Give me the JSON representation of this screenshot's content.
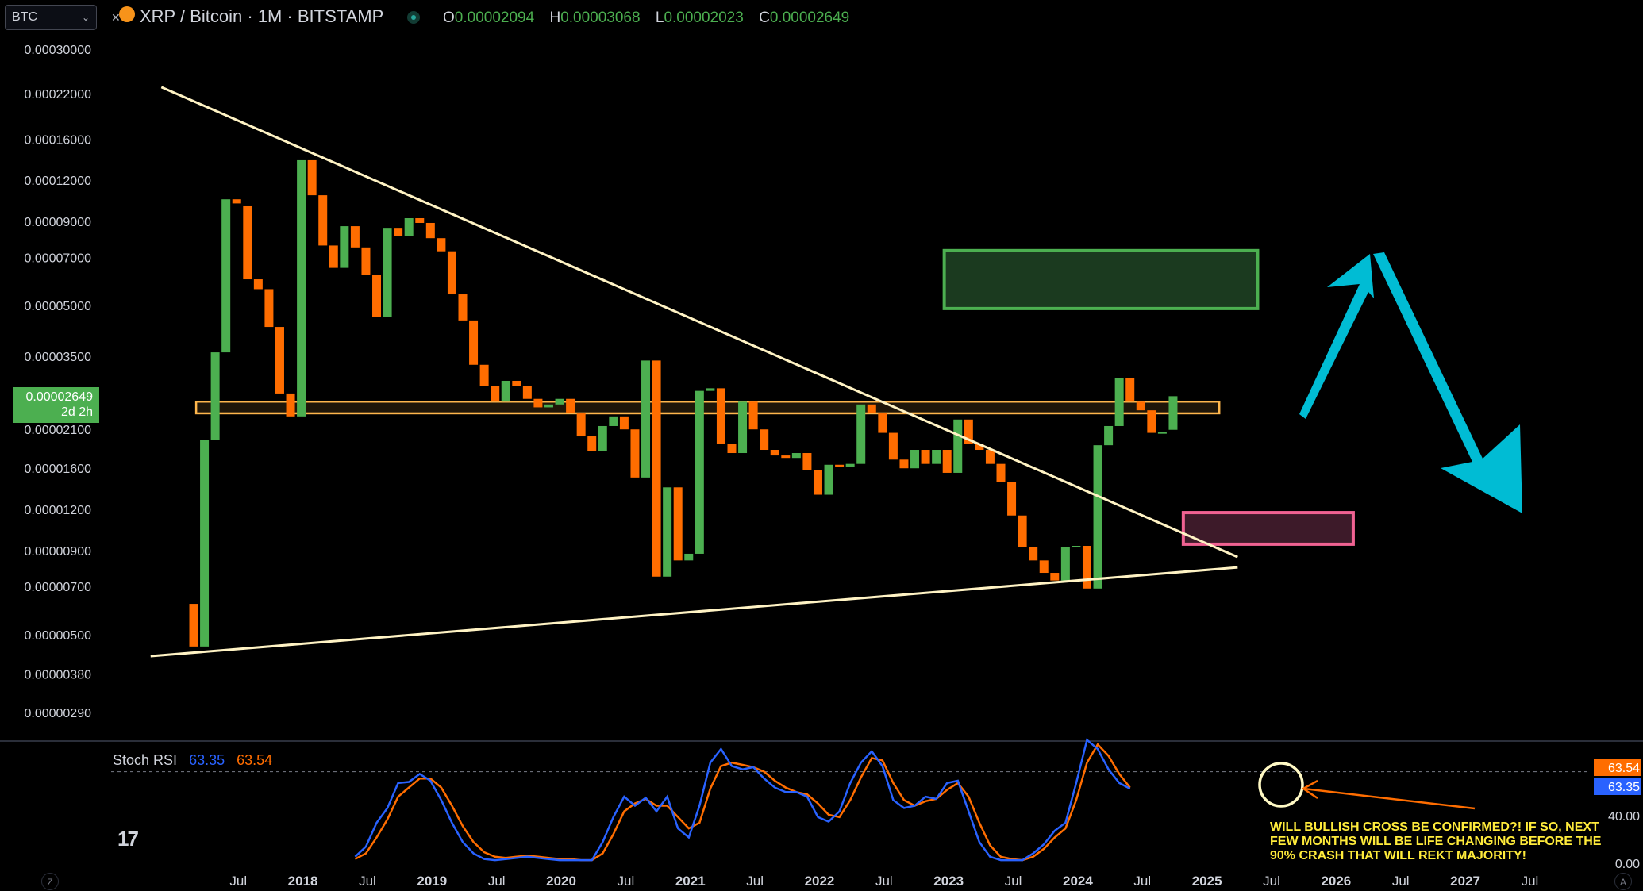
{
  "header": {
    "symbol_search": "BTC",
    "title": "XRP / Bitcoin · 1M · BITSTAMP",
    "ohlc": [
      {
        "key": "O",
        "value": "0.00002094"
      },
      {
        "key": "H",
        "value": "0.00003068"
      },
      {
        "key": "L",
        "value": "0.00002023"
      },
      {
        "key": "C",
        "value": "0.00002649"
      }
    ],
    "icons": {
      "close": "close-icon",
      "logo": "bitcoin-logo-icon",
      "status": "market-status-icon",
      "chevron": "chevron-down-icon"
    }
  },
  "price_tag": {
    "price": "0.00002649",
    "countdown": "2d 2h"
  },
  "stoch": {
    "name": "Stoch RSI",
    "k_value": "63.35",
    "d_value": "63.54"
  },
  "annotation": "WILL BULLISH CROSS BE CONFIRMED?! IF SO, NEXT FEW MONTHS WILL BE LIFE CHANGING BEFORE THE 90% CRASH THAT WILL REKT MAJORITY!",
  "toolbar": {
    "zoom_label": "Z",
    "auto_label": "A",
    "logo_label": "17"
  },
  "chart_data": {
    "type": "candlestick",
    "scale": "log",
    "y_tick_labels": [
      "0.00030000",
      "0.00022000",
      "0.00016000",
      "0.00012000",
      "0.00009000",
      "0.00007000",
      "0.00005000",
      "0.00003500",
      "0.00002100",
      "0.00001600",
      "0.00001200",
      "0.00000900",
      "0.00000700",
      "0.00000500",
      "0.00000380",
      "0.00000290"
    ],
    "x_tick_labels": [
      "Jul",
      "2018",
      "Jul",
      "2019",
      "Jul",
      "2020",
      "Jul",
      "2021",
      "Jul",
      "2022",
      "Jul",
      "2023",
      "Jul",
      "2024",
      "Jul",
      "2025",
      "Jul",
      "2026",
      "Jul",
      "2027",
      "Jul"
    ],
    "x_tick_bold": [
      false,
      true,
      false,
      true,
      false,
      true,
      false,
      true,
      false,
      true,
      false,
      true,
      false,
      true,
      false,
      true,
      false,
      true,
      false,
      true,
      false
    ],
    "start_month": "2017-03",
    "colors": {
      "up": "#4caf50",
      "down": "#ff6d00",
      "k": "#2962ff",
      "d": "#ff6d00",
      "trendline": "#fff3c4",
      "band": "#ffb74d",
      "target_box": "#4caf50",
      "target_fill": "#1b3a1f",
      "low_box": "#f06292",
      "low_fill": "#3d1a29",
      "arrow": "#00bcd4"
    },
    "candles": [
      {
        "o": 6.2e-06,
        "c": 4.6e-06
      },
      {
        "o": 4.6e-06,
        "c": 1.95e-05
      },
      {
        "o": 1.95e-05,
        "c": 3.6e-05
      },
      {
        "o": 3.6e-05,
        "c": 0.000105
      },
      {
        "o": 0.000105,
        "c": 0.000102
      },
      {
        "o": 0.0001,
        "c": 6e-05
      },
      {
        "o": 6e-05,
        "c": 5.6e-05
      },
      {
        "o": 5.6e-05,
        "c": 4.3e-05
      },
      {
        "o": 4.3e-05,
        "c": 2.7e-05
      },
      {
        "o": 2.7e-05,
        "c": 2.3e-05
      },
      {
        "o": 2.3e-05,
        "c": 0.000138
      },
      {
        "o": 0.000138,
        "c": 0.000108
      },
      {
        "o": 0.000108,
        "c": 7.6e-05
      },
      {
        "o": 7.6e-05,
        "c": 6.5e-05
      },
      {
        "o": 6.5e-05,
        "c": 8.7e-05
      },
      {
        "o": 8.7e-05,
        "c": 7.5e-05
      },
      {
        "o": 7.5e-05,
        "c": 6.2e-05
      },
      {
        "o": 6.2e-05,
        "c": 4.6e-05
      },
      {
        "o": 4.6e-05,
        "c": 8.6e-05
      },
      {
        "o": 8.6e-05,
        "c": 8.1e-05
      },
      {
        "o": 8.1e-05,
        "c": 9.2e-05
      },
      {
        "o": 9.2e-05,
        "c": 8.9e-05
      },
      {
        "o": 8.9e-05,
        "c": 8e-05
      },
      {
        "o": 8e-05,
        "c": 7.3e-05
      },
      {
        "o": 7.3e-05,
        "c": 5.4e-05
      },
      {
        "o": 5.4e-05,
        "c": 4.5e-05
      },
      {
        "o": 4.5e-05,
        "c": 3.3e-05
      },
      {
        "o": 3.3e-05,
        "c": 2.85e-05
      },
      {
        "o": 2.85e-05,
        "c": 2.55e-05
      },
      {
        "o": 2.55e-05,
        "c": 2.95e-05
      },
      {
        "o": 2.95e-05,
        "c": 2.85e-05
      },
      {
        "o": 2.85e-05,
        "c": 2.6e-05
      },
      {
        "o": 2.6e-05,
        "c": 2.45e-05
      },
      {
        "o": 2.45e-05,
        "c": 2.5e-05
      },
      {
        "o": 2.5e-05,
        "c": 2.6e-05
      },
      {
        "o": 2.6e-05,
        "c": 2.35e-05
      },
      {
        "o": 2.35e-05,
        "c": 2e-05
      },
      {
        "o": 2e-05,
        "c": 1.8e-05
      },
      {
        "o": 1.8e-05,
        "c": 2.15e-05
      },
      {
        "o": 2.15e-05,
        "c": 2.3e-05
      },
      {
        "o": 2.3e-05,
        "c": 2.1e-05
      },
      {
        "o": 2.1e-05,
        "c": 1.5e-05
      },
      {
        "o": 1.5e-05,
        "c": 3.4e-05
      },
      {
        "o": 3.4e-05,
        "c": 7.5e-06
      },
      {
        "o": 7.5e-06,
        "c": 1.4e-05
      },
      {
        "o": 1.4e-05,
        "c": 8.4e-06
      },
      {
        "o": 8.4e-06,
        "c": 8.8e-06
      },
      {
        "o": 8.8e-06,
        "c": 2.75e-05
      },
      {
        "o": 2.75e-05,
        "c": 2.8e-05
      },
      {
        "o": 2.8e-05,
        "c": 1.9e-05
      },
      {
        "o": 1.9e-05,
        "c": 1.78e-05
      },
      {
        "o": 1.78e-05,
        "c": 2.55e-05
      },
      {
        "o": 2.55e-05,
        "c": 2.1e-05
      },
      {
        "o": 2.1e-05,
        "c": 1.82e-05
      },
      {
        "o": 1.82e-05,
        "c": 1.75e-05
      },
      {
        "o": 1.75e-05,
        "c": 1.72e-05
      },
      {
        "o": 1.72e-05,
        "c": 1.78e-05
      },
      {
        "o": 1.78e-05,
        "c": 1.58e-05
      },
      {
        "o": 1.58e-05,
        "c": 1.33e-05
      },
      {
        "o": 1.33e-05,
        "c": 1.64e-05
      },
      {
        "o": 1.64e-05,
        "c": 1.62e-05
      },
      {
        "o": 1.62e-05,
        "c": 1.65e-05
      },
      {
        "o": 1.65e-05,
        "c": 2.5e-05
      },
      {
        "o": 2.5e-05,
        "c": 2.35e-05
      },
      {
        "o": 2.35e-05,
        "c": 2.05e-05
      },
      {
        "o": 2.05e-05,
        "c": 1.7e-05
      },
      {
        "o": 1.7e-05,
        "c": 1.6e-05
      },
      {
        "o": 1.6e-05,
        "c": 1.82e-05
      },
      {
        "o": 1.82e-05,
        "c": 1.65e-05
      },
      {
        "o": 1.65e-05,
        "c": 1.82e-05
      },
      {
        "o": 1.82e-05,
        "c": 1.55e-05
      },
      {
        "o": 1.55e-05,
        "c": 2.25e-05
      },
      {
        "o": 2.25e-05,
        "c": 1.9e-05
      },
      {
        "o": 1.9e-05,
        "c": 1.82e-05
      },
      {
        "o": 1.82e-05,
        "c": 1.65e-05
      },
      {
        "o": 1.65e-05,
        "c": 1.45e-05
      },
      {
        "o": 1.45e-05,
        "c": 1.15e-05
      },
      {
        "o": 1.15e-05,
        "c": 9.2e-06
      },
      {
        "o": 9.2e-06,
        "c": 8.4e-06
      },
      {
        "o": 8.4e-06,
        "c": 7.7e-06
      },
      {
        "o": 7.7e-06,
        "c": 7.3e-06
      },
      {
        "o": 7.3e-06,
        "c": 9.2e-06
      },
      {
        "o": 9.2e-06,
        "c": 9.3e-06
      },
      {
        "o": 9.3e-06,
        "c": 6.9e-06
      },
      {
        "o": 6.9e-06,
        "c": 1.88e-05
      },
      {
        "o": 1.88e-05,
        "c": 2.15e-05
      },
      {
        "o": 2.15e-05,
        "c": 3e-05
      },
      {
        "o": 3e-05,
        "c": 2.55e-05
      },
      {
        "o": 2.55e-05,
        "c": 2.4e-05
      },
      {
        "o": 2.4e-05,
        "c": 2.05e-05
      },
      {
        "o": 2.05e-05,
        "c": 2.06e-05
      },
      {
        "o": 2.094e-05,
        "c": 2.649e-05
      }
    ],
    "band": {
      "low": 2.35e-05,
      "high": 2.55e-05,
      "from_month": 2,
      "to_month": 95
    },
    "descending_trendline": [
      {
        "m": -3,
        "v": 0.00023
      },
      {
        "m": 97,
        "v": 8.6e-06
      }
    ],
    "ascending_trendline": [
      {
        "m": -4,
        "v": 4.3e-06
      },
      {
        "m": 97,
        "v": 8e-06
      }
    ],
    "target_zone": {
      "low": 5e-05,
      "high": 7.5e-05,
      "from_month": 69,
      "to_month": 99
    },
    "crash_zone": {
      "low": 9e-06,
      "high": 1.2e-05,
      "from_month": 89,
      "to_month": 107
    },
    "stoch_levels": {
      "upper": 80,
      "lower": 20
    },
    "stoch_axis": [
      "63.54",
      "63.35",
      "40.00",
      "0.00"
    ],
    "stoch_k": [
      [
        15,
        5
      ],
      [
        16,
        14
      ],
      [
        17,
        35
      ],
      [
        18,
        48
      ],
      [
        19,
        70
      ],
      [
        20,
        71
      ],
      [
        21,
        78
      ],
      [
        22,
        72
      ],
      [
        23,
        55
      ],
      [
        24,
        35
      ],
      [
        25,
        18
      ],
      [
        26,
        8
      ],
      [
        27,
        3
      ],
      [
        28,
        2
      ],
      [
        29,
        3
      ],
      [
        30,
        4
      ],
      [
        31,
        5
      ],
      [
        32,
        4
      ],
      [
        33,
        3
      ],
      [
        34,
        2
      ],
      [
        35,
        2
      ],
      [
        36,
        2
      ],
      [
        37,
        2
      ],
      [
        38,
        18
      ],
      [
        39,
        40
      ],
      [
        40,
        58
      ],
      [
        41,
        50
      ],
      [
        42,
        57
      ],
      [
        43,
        45
      ],
      [
        44,
        58
      ],
      [
        45,
        30
      ],
      [
        46,
        22
      ],
      [
        47,
        50
      ],
      [
        48,
        88
      ],
      [
        49,
        100
      ],
      [
        50,
        85
      ],
      [
        51,
        82
      ],
      [
        52,
        84
      ],
      [
        53,
        74
      ],
      [
        54,
        66
      ],
      [
        55,
        62
      ],
      [
        56,
        62
      ],
      [
        57,
        58
      ],
      [
        58,
        40
      ],
      [
        59,
        36
      ],
      [
        60,
        45
      ],
      [
        61,
        70
      ],
      [
        62,
        88
      ],
      [
        63,
        98
      ],
      [
        64,
        85
      ],
      [
        65,
        55
      ],
      [
        66,
        48
      ],
      [
        67,
        50
      ],
      [
        68,
        58
      ],
      [
        69,
        56
      ],
      [
        70,
        70
      ],
      [
        71,
        72
      ],
      [
        72,
        45
      ],
      [
        73,
        18
      ],
      [
        74,
        5
      ],
      [
        75,
        2
      ],
      [
        76,
        2
      ],
      [
        77,
        2
      ],
      [
        78,
        8
      ],
      [
        79,
        16
      ],
      [
        80,
        28
      ],
      [
        81,
        35
      ],
      [
        82,
        70
      ],
      [
        83,
        108
      ],
      [
        84,
        100
      ],
      [
        85,
        82
      ],
      [
        86,
        70
      ],
      [
        87,
        65
      ]
    ],
    "stoch_d": [
      [
        15,
        3
      ],
      [
        16,
        8
      ],
      [
        17,
        22
      ],
      [
        18,
        38
      ],
      [
        19,
        58
      ],
      [
        20,
        66
      ],
      [
        21,
        74
      ],
      [
        22,
        74
      ],
      [
        23,
        66
      ],
      [
        24,
        50
      ],
      [
        25,
        32
      ],
      [
        26,
        18
      ],
      [
        27,
        9
      ],
      [
        28,
        5
      ],
      [
        29,
        4
      ],
      [
        30,
        5
      ],
      [
        31,
        6
      ],
      [
        32,
        5
      ],
      [
        33,
        4
      ],
      [
        34,
        3
      ],
      [
        35,
        3
      ],
      [
        36,
        2
      ],
      [
        37,
        2
      ],
      [
        38,
        8
      ],
      [
        39,
        25
      ],
      [
        40,
        45
      ],
      [
        41,
        52
      ],
      [
        42,
        56
      ],
      [
        43,
        50
      ],
      [
        44,
        50
      ],
      [
        45,
        40
      ],
      [
        46,
        30
      ],
      [
        47,
        35
      ],
      [
        48,
        65
      ],
      [
        49,
        85
      ],
      [
        50,
        88
      ],
      [
        51,
        86
      ],
      [
        52,
        84
      ],
      [
        53,
        80
      ],
      [
        54,
        72
      ],
      [
        55,
        66
      ],
      [
        56,
        62
      ],
      [
        57,
        60
      ],
      [
        58,
        52
      ],
      [
        59,
        42
      ],
      [
        60,
        40
      ],
      [
        61,
        55
      ],
      [
        62,
        75
      ],
      [
        63,
        92
      ],
      [
        64,
        90
      ],
      [
        65,
        70
      ],
      [
        66,
        55
      ],
      [
        67,
        50
      ],
      [
        68,
        54
      ],
      [
        69,
        56
      ],
      [
        70,
        64
      ],
      [
        71,
        70
      ],
      [
        72,
        58
      ],
      [
        73,
        35
      ],
      [
        74,
        15
      ],
      [
        75,
        5
      ],
      [
        76,
        3
      ],
      [
        77,
        2
      ],
      [
        78,
        5
      ],
      [
        79,
        12
      ],
      [
        80,
        22
      ],
      [
        81,
        30
      ],
      [
        82,
        55
      ],
      [
        83,
        88
      ],
      [
        84,
        104
      ],
      [
        85,
        94
      ],
      [
        86,
        78
      ],
      [
        87,
        66
      ]
    ]
  }
}
